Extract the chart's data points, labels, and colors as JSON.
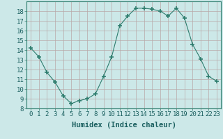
{
  "x": [
    0,
    1,
    2,
    3,
    4,
    5,
    6,
    7,
    8,
    9,
    10,
    11,
    12,
    13,
    14,
    15,
    16,
    17,
    18,
    19,
    20,
    21,
    22,
    23
  ],
  "y": [
    14.2,
    13.3,
    11.7,
    10.7,
    9.3,
    8.5,
    8.8,
    9.0,
    9.5,
    11.3,
    13.3,
    16.5,
    17.5,
    18.3,
    18.3,
    18.2,
    18.0,
    17.5,
    18.3,
    17.3,
    14.6,
    13.1,
    11.3,
    10.8
  ],
  "line_color": "#2e7d6e",
  "marker": "+",
  "marker_size": 4,
  "bg_color": "#cce8e8",
  "grid_color": "#b8a8a8",
  "xlabel": "Humidex (Indice chaleur)",
  "ylim": [
    8,
    19
  ],
  "xlim": [
    -0.5,
    23.5
  ],
  "yticks": [
    8,
    9,
    10,
    11,
    12,
    13,
    14,
    15,
    16,
    17,
    18
  ],
  "xticks": [
    0,
    1,
    2,
    3,
    4,
    5,
    6,
    7,
    8,
    9,
    10,
    11,
    12,
    13,
    14,
    15,
    16,
    17,
    18,
    19,
    20,
    21,
    22,
    23
  ],
  "tick_fontsize": 6.5,
  "xlabel_fontsize": 7.5
}
